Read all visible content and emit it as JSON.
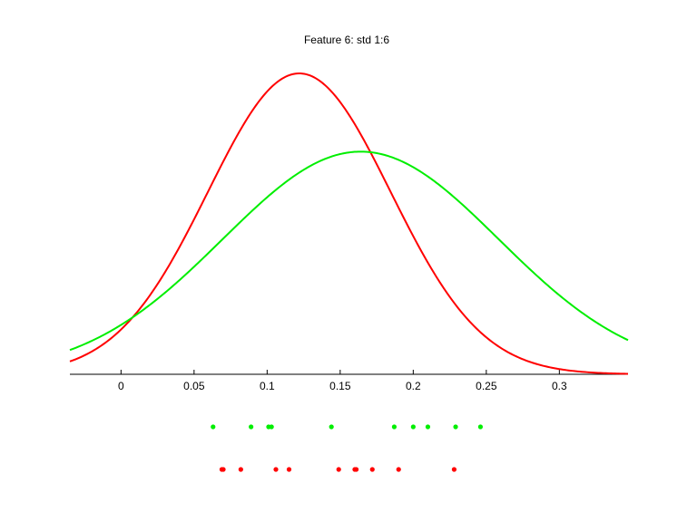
{
  "chart_data": {
    "type": "line",
    "title": "Feature 6: std 1:6",
    "xlabel": "",
    "ylabel": "",
    "xlim": [
      -0.035,
      0.347
    ],
    "ylim": [
      0,
      1.0
    ],
    "xticks": [
      0,
      0.05,
      0.1,
      0.15,
      0.2,
      0.25,
      0.3
    ],
    "xtick_labels": [
      "0",
      "0.05",
      "0.1",
      "0.15",
      "0.2",
      "0.25",
      "0.3"
    ],
    "grid": false,
    "legend": "none",
    "series": [
      {
        "color": "#ff0000",
        "mean": 0.122,
        "std": 0.0625,
        "peak": 1.0,
        "samples": [
          0.069,
          0.07,
          0.082,
          0.106,
          0.115,
          0.149,
          0.16,
          0.161,
          0.172,
          0.19,
          0.228
        ]
      },
      {
        "color": "#00ee00",
        "mean": 0.164,
        "std": 0.0945,
        "peak": 0.74,
        "samples": [
          0.063,
          0.089,
          0.101,
          0.103,
          0.144,
          0.187,
          0.2,
          0.21,
          0.229,
          0.246
        ]
      }
    ]
  }
}
